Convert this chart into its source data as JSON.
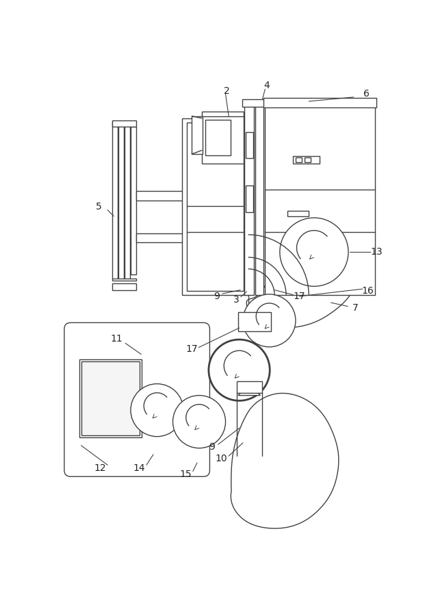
{
  "bg": "#ffffff",
  "lc": "#404040",
  "lw": 1.0,
  "fig_w": 6.4,
  "fig_h": 9.0
}
